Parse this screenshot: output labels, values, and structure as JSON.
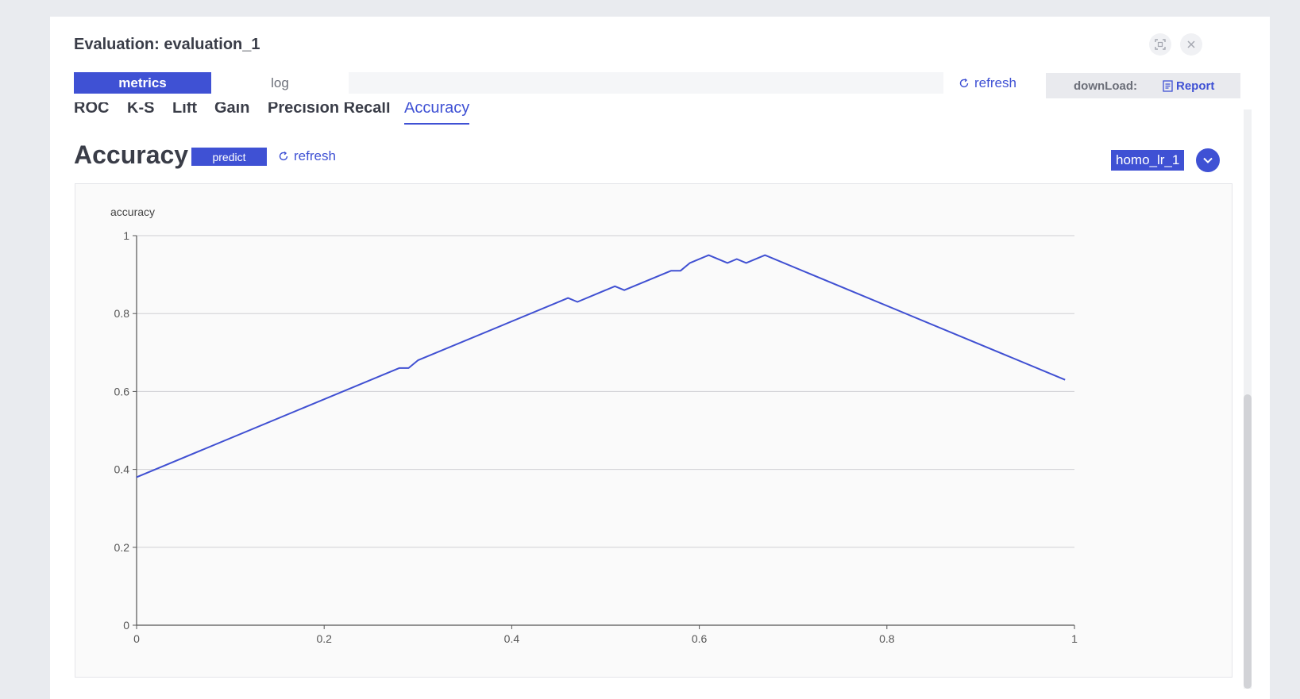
{
  "dialog": {
    "title": "Evaluation: evaluation_1",
    "fullscreen_icon": "fullscreen-icon",
    "close_icon": "close-icon"
  },
  "tabs": [
    {
      "label": "metrics",
      "active": true
    },
    {
      "label": "log",
      "active": false
    }
  ],
  "top_refresh_label": "refresh",
  "download": {
    "label": "downLoad:",
    "report_label": "Report"
  },
  "metric_tabs": [
    {
      "label": "ROC",
      "selected": false
    },
    {
      "label": "K-S",
      "selected": false
    },
    {
      "label": "Lift",
      "selected": false
    },
    {
      "label": "Gain",
      "selected": false
    },
    {
      "label": "Precision Recall",
      "selected": false
    },
    {
      "label": "Accuracy",
      "selected": true
    }
  ],
  "section": {
    "title": "Accuracy",
    "predict_label": "predict",
    "refresh_label": "refresh",
    "model_name": "homo_lr_1"
  },
  "colors": {
    "accent": "#3f51d4",
    "line": "#4050d2",
    "grid": "#cfcfd3",
    "text": "#3a3d48"
  },
  "chart_data": {
    "type": "line",
    "ylabel": "accuracy",
    "xlabel": "",
    "xlim": [
      0,
      1
    ],
    "ylim": [
      0,
      1
    ],
    "x_ticks": [
      "0",
      "0.2",
      "0.4",
      "0.6",
      "0.8",
      "1"
    ],
    "y_ticks": [
      "0",
      "0.2",
      "0.4",
      "0.6",
      "0.8",
      "1"
    ],
    "grid": true,
    "series": [
      {
        "x": [
          0,
          0.28,
          0.29,
          0.3,
          0.46,
          0.47,
          0.51,
          0.52,
          0.57,
          0.58,
          0.59,
          0.61,
          0.63,
          0.64,
          0.65,
          0.67,
          0.99
        ],
        "y": [
          0.38,
          0.66,
          0.66,
          0.68,
          0.84,
          0.83,
          0.87,
          0.86,
          0.91,
          0.91,
          0.93,
          0.95,
          0.93,
          0.94,
          0.93,
          0.95,
          0.63
        ]
      }
    ]
  }
}
